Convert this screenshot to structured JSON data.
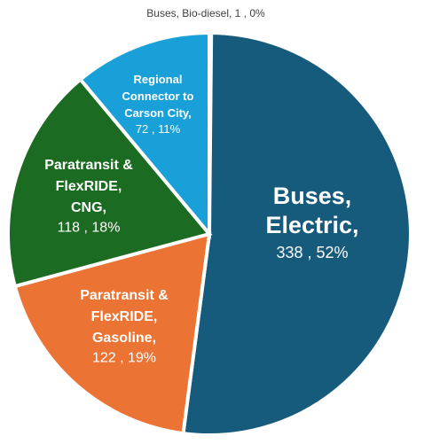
{
  "chart_data": {
    "type": "pie",
    "legend": "none",
    "slices": [
      {
        "name": "Buses, Bio-diesel",
        "value": 1,
        "percent": "0%",
        "color": "#1f4e79",
        "label_lines": [
          "Buses, Bio-diesel,"
        ],
        "value_label": "1 , 0%"
      },
      {
        "name": "Buses, Electric",
        "value": 338,
        "percent": "52%",
        "color": "#165a7c",
        "label_lines": [
          "Buses,",
          "Electric,"
        ],
        "value_label": "338 , 52%"
      },
      {
        "name": "Paratransit & FlexRIDE, Gasoline",
        "value": 122,
        "percent": "19%",
        "color": "#eb7333",
        "label_lines": [
          "Paratransit &",
          "FlexRIDE,",
          "Gasoline,"
        ],
        "value_label": "122 , 19%"
      },
      {
        "name": "Paratransit & FlexRIDE, CNG",
        "value": 118,
        "percent": "18%",
        "color": "#1c6b22",
        "label_lines": [
          "Paratransit &",
          "FlexRIDE,",
          "CNG,"
        ],
        "value_label": "118 , 18%"
      },
      {
        "name": "Regional Connector to Carson City",
        "value": 72,
        "percent": "11%",
        "color": "#1aa0d8",
        "label_lines": [
          "Regional",
          "Connector to",
          "Carson City,"
        ],
        "value_label": "72 , 11%"
      }
    ]
  }
}
